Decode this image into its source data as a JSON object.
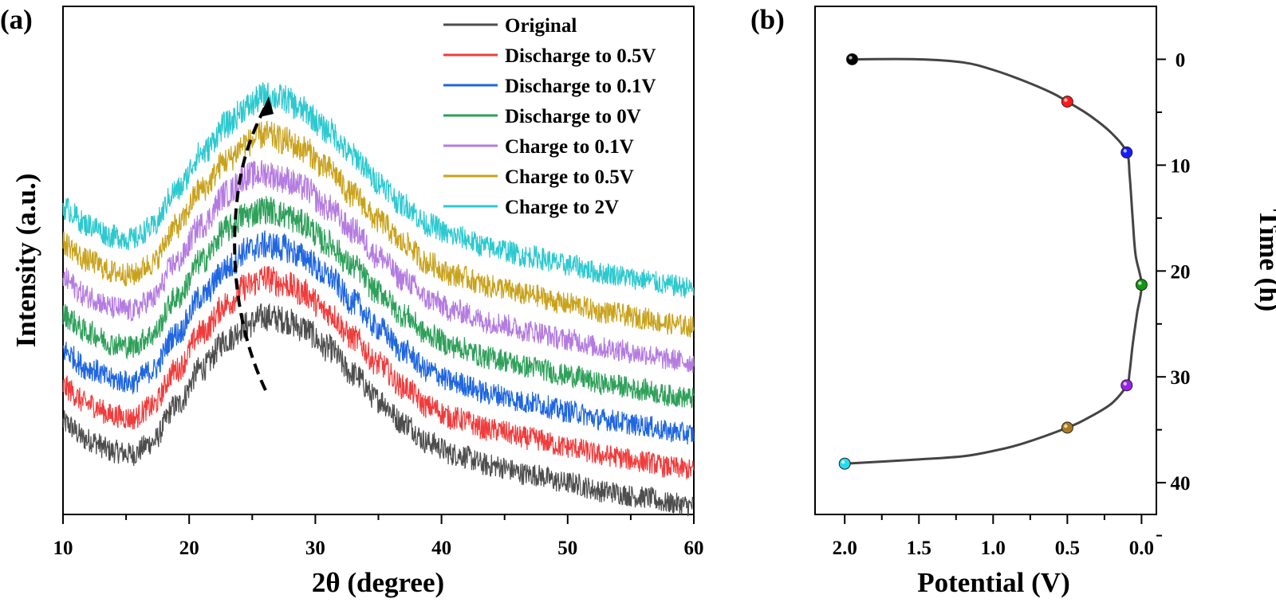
{
  "chart_data": [
    {
      "panel": "(a)",
      "type": "line",
      "xlabel": "2θ (degree)",
      "ylabel": "Intensity (a.u.)",
      "xlim": [
        10,
        60
      ],
      "xticks": [
        10,
        20,
        30,
        40,
        50,
        60
      ],
      "x": [
        10,
        12,
        14,
        15.5,
        17,
        19,
        21,
        23,
        24.5,
        26,
        27.5,
        29,
        31,
        33,
        35,
        37,
        39,
        41,
        44,
        47,
        50,
        53,
        56,
        58,
        60
      ],
      "series": [
        {
          "name": "Original",
          "color": "#4d4d4d",
          "offset": 0.0,
          "values": [
            4.7,
            4.1,
            3.7,
            3.6,
            4.0,
            5.3,
            6.6,
            7.6,
            8.1,
            8.4,
            8.3,
            8.0,
            7.3,
            6.4,
            5.5,
            4.7,
            4.0,
            3.6,
            3.2,
            2.9,
            2.6,
            2.3,
            2.1,
            1.9,
            1.8
          ]
        },
        {
          "name": "Discharge to 0.5V",
          "color": "#f03c3c",
          "offset": 1.0,
          "values": [
            4.7,
            4.1,
            3.7,
            3.6,
            4.0,
            5.3,
            6.6,
            7.6,
            8.2,
            8.5,
            8.3,
            8.0,
            7.3,
            6.4,
            5.5,
            4.7,
            4.0,
            3.6,
            3.2,
            2.9,
            2.6,
            2.3,
            2.1,
            1.9,
            1.8
          ]
        },
        {
          "name": "Discharge to 0.1V",
          "color": "#1f66e0",
          "offset": 2.0,
          "values": [
            4.7,
            4.1,
            3.7,
            3.6,
            4.0,
            5.3,
            6.6,
            7.6,
            8.2,
            8.4,
            8.3,
            8.0,
            7.3,
            6.4,
            5.5,
            4.7,
            4.0,
            3.6,
            3.2,
            2.9,
            2.6,
            2.3,
            2.1,
            1.9,
            1.8
          ]
        },
        {
          "name": "Discharge to 0V",
          "color": "#2ea05a",
          "offset": 3.0,
          "values": [
            4.7,
            4.1,
            3.7,
            3.6,
            4.0,
            5.3,
            6.6,
            7.7,
            8.2,
            8.4,
            8.2,
            7.9,
            7.2,
            6.4,
            5.5,
            4.7,
            4.0,
            3.6,
            3.2,
            2.9,
            2.6,
            2.3,
            2.1,
            1.9,
            1.8
          ]
        },
        {
          "name": "Charge to 0.1V",
          "color": "#b47be0",
          "offset": 4.0,
          "values": [
            4.7,
            4.1,
            3.7,
            3.6,
            4.0,
            5.3,
            6.6,
            7.7,
            8.3,
            8.4,
            8.2,
            7.9,
            7.2,
            6.4,
            5.5,
            4.7,
            4.0,
            3.6,
            3.2,
            2.9,
            2.6,
            2.3,
            2.1,
            1.9,
            1.8
          ]
        },
        {
          "name": "Charge to 0.5V",
          "color": "#c9a21c",
          "offset": 5.0,
          "values": [
            4.7,
            4.1,
            3.7,
            3.6,
            4.0,
            5.3,
            6.6,
            7.6,
            8.2,
            8.5,
            8.3,
            8.0,
            7.3,
            6.4,
            5.5,
            4.7,
            4.0,
            3.6,
            3.2,
            2.9,
            2.6,
            2.3,
            2.1,
            1.9,
            1.8
          ]
        },
        {
          "name": "Charge to 2V",
          "color": "#2cc9cf",
          "offset": 6.0,
          "values": [
            4.7,
            4.1,
            3.7,
            3.6,
            4.0,
            5.3,
            6.6,
            7.6,
            8.2,
            8.6,
            8.5,
            8.1,
            7.4,
            6.5,
            5.6,
            4.8,
            4.1,
            3.7,
            3.3,
            3.0,
            2.7,
            2.4,
            2.2,
            2.0,
            1.9
          ]
        }
      ],
      "annotation": "dashed arrow tracing peak shift, pointing upward",
      "legend": "top-right"
    },
    {
      "panel": "(b)",
      "type": "line",
      "xlabel": "Potential (V)",
      "ylabel": "Time (h)",
      "xlim": [
        2.2,
        -0.1
      ],
      "ylim": [
        43,
        -5
      ],
      "xticks": [
        2.0,
        1.5,
        1.0,
        0.5,
        0.0
      ],
      "xtick_labels": [
        "2.0",
        "1.5",
        "1.0",
        "0.5",
        "0.0"
      ],
      "yticks": [
        0,
        10,
        20,
        30,
        40
      ],
      "yaxis_side": "right",
      "curve": {
        "color": "#444444",
        "x": [
          1.95,
          1.5,
          1.2,
          1.0,
          0.8,
          0.6,
          0.5,
          0.35,
          0.2,
          0.1,
          0.08,
          0.06,
          0.04,
          0.0,
          0.03,
          0.06,
          0.08,
          0.1,
          0.2,
          0.35,
          0.5,
          0.8,
          1.0,
          1.2,
          1.5,
          2.0
        ],
        "y": [
          0.0,
          0.0,
          0.3,
          1.0,
          2.0,
          3.2,
          4.0,
          5.3,
          7.0,
          8.8,
          11.0,
          15.0,
          18.5,
          21.3,
          24.0,
          27.0,
          29.5,
          30.8,
          32.5,
          33.8,
          34.8,
          36.3,
          37.0,
          37.5,
          37.8,
          38.2
        ]
      },
      "markers": [
        {
          "x": 1.95,
          "y": 0.0,
          "color": "#000000"
        },
        {
          "x": 0.5,
          "y": 4.0,
          "color": "#ff1a1a"
        },
        {
          "x": 0.1,
          "y": 8.8,
          "color": "#1a1aff"
        },
        {
          "x": 0.0,
          "y": 21.3,
          "color": "#119911"
        },
        {
          "x": 0.1,
          "y": 30.8,
          "color": "#9a22ee"
        },
        {
          "x": 0.5,
          "y": 34.8,
          "color": "#a87a22"
        },
        {
          "x": 2.0,
          "y": 38.2,
          "color": "#22ddee"
        }
      ]
    }
  ]
}
